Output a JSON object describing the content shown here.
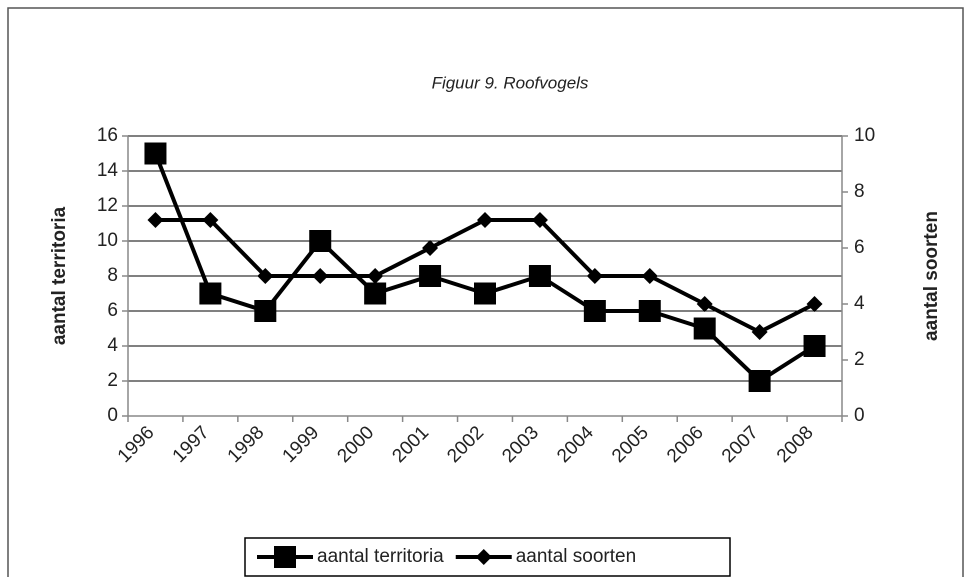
{
  "chart_data": {
    "type": "line",
    "title": "Figuur 9. Roofvogels",
    "y_label": "aantal territoria",
    "y2_label": "aantal soorten",
    "categories": [
      "1996",
      "1997",
      "1998",
      "1999",
      "2000",
      "2001",
      "2002",
      "2003",
      "2004",
      "2005",
      "2006",
      "2007",
      "2008"
    ],
    "series": [
      {
        "name": "aantal territoria",
        "color": "#000000",
        "marker": "square",
        "values": [
          15,
          7,
          6,
          10,
          7,
          8,
          7,
          8,
          6,
          6,
          5,
          2,
          4
        ]
      },
      {
        "name": "aantal soorten",
        "color": "#000000",
        "marker": "diamond",
        "axis": "y2",
        "values": [
          7,
          7,
          5,
          5,
          5,
          6,
          7,
          7,
          5,
          5,
          4,
          3,
          4
        ]
      }
    ],
    "ylim": [
      0,
      16
    ],
    "yticks": [
      0,
      2,
      4,
      6,
      8,
      10,
      12,
      14,
      16
    ],
    "y2lim": [
      0,
      10
    ],
    "y2ticks": [
      0,
      2,
      4,
      6,
      8,
      10
    ],
    "grid": true,
    "legend": "bottom"
  }
}
